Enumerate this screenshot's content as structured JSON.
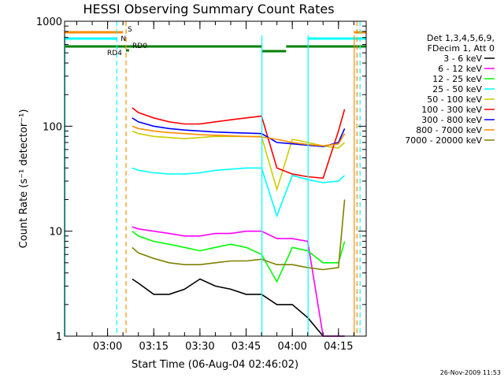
{
  "chart_data": {
    "type": "line",
    "title": "HESSI Observing Summary Count Rates",
    "xlabel": "Start Time (06-Aug-04 02:46:02)",
    "ylabel": "Count Rate (s⁻¹ detector⁻¹)",
    "y_scale": "log",
    "ylim": [
      1,
      1000
    ],
    "xlim": [
      "02:46:02",
      "04:24:00"
    ],
    "x_ticks": [
      "03:00",
      "03:15",
      "03:30",
      "03:45",
      "04:00",
      "04:15"
    ],
    "y_ticks": [
      "1",
      "10",
      "100",
      "1000"
    ],
    "grid": false,
    "legend_position": "right",
    "legend_title": [
      "Det 1,3,4,5,6,9,",
      "FDecim 1, Att 0"
    ],
    "flags": {
      "S_label": "S",
      "N_label": "N",
      "RD0_label": "RD0",
      "RD4_label": "RD4"
    },
    "timestamp": "26-Nov-2009 11:53",
    "series": [
      {
        "name": "3 - 6 keV",
        "color": "#000000",
        "x": [
          "03:08",
          "03:10",
          "03:15",
          "03:20",
          "03:25",
          "03:30",
          "03:35",
          "03:40",
          "03:45",
          "03:50",
          "03:55",
          "04:00",
          "04:05",
          "04:10",
          "04:15",
          "04:17"
        ],
        "y": [
          3.5,
          3.2,
          2.5,
          2.5,
          2.8,
          3.5,
          3.0,
          2.8,
          2.5,
          2.5,
          2.0,
          2.0,
          1.5,
          1.0,
          1.0,
          1.0
        ]
      },
      {
        "name": "6 - 12 keV",
        "color": "#ff00ff",
        "x": [
          "03:08",
          "03:10",
          "03:15",
          "03:20",
          "03:25",
          "03:30",
          "03:35",
          "03:40",
          "03:45",
          "03:50",
          "03:55",
          "04:00",
          "04:05",
          "04:10",
          "04:15",
          "04:17"
        ],
        "y": [
          11,
          10.5,
          10,
          9.5,
          9,
          9,
          9.5,
          9.5,
          10,
          10,
          8.5,
          8.5,
          8,
          1.0,
          1.0,
          1.0
        ]
      },
      {
        "name": "12 - 25 keV",
        "color": "#00ff00",
        "x": [
          "03:08",
          "03:10",
          "03:15",
          "03:20",
          "03:25",
          "03:30",
          "03:35",
          "03:40",
          "03:45",
          "03:50",
          "03:55",
          "04:00",
          "04:05",
          "04:10",
          "04:15",
          "04:17"
        ],
        "y": [
          10,
          9,
          8,
          7.5,
          7,
          6.5,
          7,
          7.5,
          7,
          6,
          3.3,
          7,
          6.5,
          5,
          5,
          8
        ]
      },
      {
        "name": "25 - 50 keV",
        "color": "#00ffff",
        "x": [
          "03:08",
          "03:10",
          "03:15",
          "03:20",
          "03:25",
          "03:30",
          "03:35",
          "03:40",
          "03:45",
          "03:50",
          "03:55",
          "04:00",
          "04:05",
          "04:10",
          "04:15",
          "04:17"
        ],
        "y": [
          40,
          38,
          36,
          35,
          35,
          36,
          38,
          39,
          40,
          40,
          14,
          34,
          31,
          29,
          30,
          34
        ]
      },
      {
        "name": "50 - 100 keV",
        "color": "#cccc00",
        "x": [
          "03:08",
          "03:10",
          "03:15",
          "03:20",
          "03:25",
          "03:30",
          "03:35",
          "03:40",
          "03:45",
          "03:50",
          "03:55",
          "04:00",
          "04:05",
          "04:10",
          "04:15",
          "04:17"
        ],
        "y": [
          90,
          85,
          80,
          78,
          76,
          78,
          80,
          80,
          80,
          80,
          25,
          75,
          70,
          65,
          62,
          70
        ]
      },
      {
        "name": "100 - 300 keV",
        "color": "#ff0000",
        "x": [
          "03:08",
          "03:10",
          "03:15",
          "03:20",
          "03:25",
          "03:30",
          "03:35",
          "03:40",
          "03:45",
          "03:50",
          "03:55",
          "04:00",
          "04:05",
          "04:10",
          "04:15",
          "04:17"
        ],
        "y": [
          150,
          135,
          120,
          110,
          105,
          105,
          110,
          115,
          120,
          125,
          40,
          35,
          33,
          32,
          90,
          145
        ]
      },
      {
        "name": "300 - 800 keV",
        "color": "#0000ff",
        "x": [
          "03:08",
          "03:10",
          "03:15",
          "03:20",
          "03:25",
          "03:30",
          "03:35",
          "03:40",
          "03:45",
          "03:50",
          "03:55",
          "04:00",
          "04:05",
          "04:10",
          "04:15",
          "04:17"
        ],
        "y": [
          120,
          110,
          100,
          95,
          92,
          90,
          88,
          87,
          86,
          85,
          70,
          68,
          66,
          64,
          70,
          95
        ]
      },
      {
        "name": "800 - 7000 keV",
        "color": "#ff8c00",
        "x": [
          "03:08",
          "03:10",
          "03:15",
          "03:20",
          "03:25",
          "03:30",
          "03:35",
          "03:40",
          "03:45",
          "03:50",
          "03:55",
          "04:00",
          "04:05",
          "04:10",
          "04:15",
          "04:17"
        ],
        "y": [
          100,
          95,
          90,
          87,
          85,
          83,
          82,
          81,
          80,
          79,
          75,
          70,
          67,
          65,
          68,
          85
        ]
      },
      {
        "name": "7000 - 20000 keV",
        "color": "#808000",
        "x": [
          "03:08",
          "03:10",
          "03:15",
          "03:20",
          "03:25",
          "03:30",
          "03:35",
          "03:40",
          "03:45",
          "03:50",
          "03:55",
          "04:00",
          "04:05",
          "04:10",
          "04:15",
          "04:17"
        ],
        "y": [
          7,
          6.2,
          5.5,
          5,
          4.8,
          4.8,
          5,
          5.2,
          5.2,
          5.4,
          4.8,
          4.8,
          4.5,
          4.3,
          4.5,
          20
        ]
      }
    ]
  }
}
